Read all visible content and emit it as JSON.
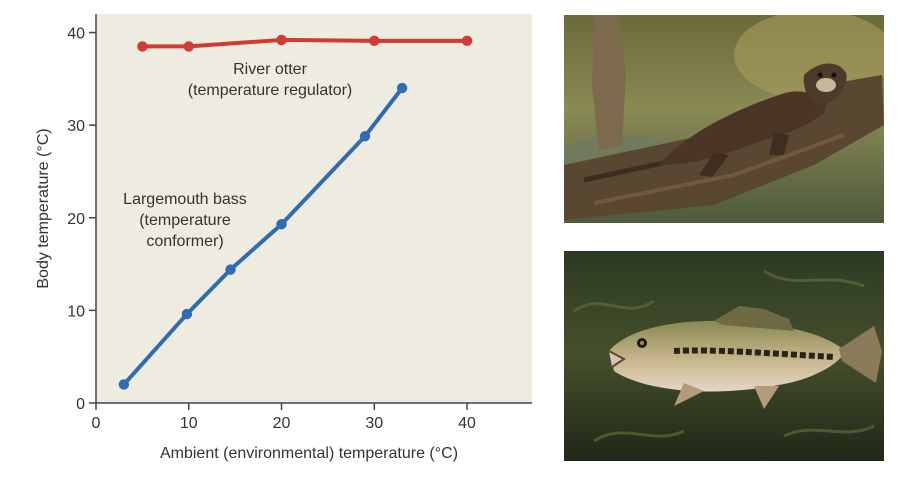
{
  "chart_data": {
    "type": "line",
    "xlabel": "Ambient (environmental) temperature (°C)",
    "ylabel": "Body temperature (°C)",
    "xlim": [
      0,
      47
    ],
    "ylim": [
      0,
      42
    ],
    "x_ticks": [
      0,
      10,
      20,
      30,
      40
    ],
    "y_ticks": [
      0,
      10,
      20,
      30,
      40
    ],
    "grid": false,
    "series": [
      {
        "key": "otter",
        "name": "River otter (temperature regulator)",
        "label_lines": [
          "River otter",
          "(temperature regulator)"
        ],
        "color": "#d23a32",
        "points": [
          [
            5,
            38.5
          ],
          [
            10,
            38.5
          ],
          [
            20,
            39.2
          ],
          [
            30,
            39.1
          ],
          [
            40,
            39.1
          ]
        ]
      },
      {
        "key": "bass",
        "name": "Largemouth bass (temperature conformer)",
        "label_lines": [
          "Largemouth bass",
          "(temperature",
          "conformer)"
        ],
        "color": "#2f6cb5",
        "points": [
          [
            3,
            2
          ],
          [
            9.8,
            9.6
          ],
          [
            14.5,
            14.4
          ],
          [
            20,
            19.3
          ],
          [
            29,
            28.8
          ],
          [
            33,
            34
          ]
        ]
      }
    ]
  },
  "photos": [
    {
      "key": "otter",
      "icon": "river-otter-photo"
    },
    {
      "key": "bass",
      "icon": "largemouth-bass-photo"
    }
  ],
  "colors": {
    "plot_background": "#eeebe1",
    "axis": "#444444",
    "text": "#333333"
  }
}
